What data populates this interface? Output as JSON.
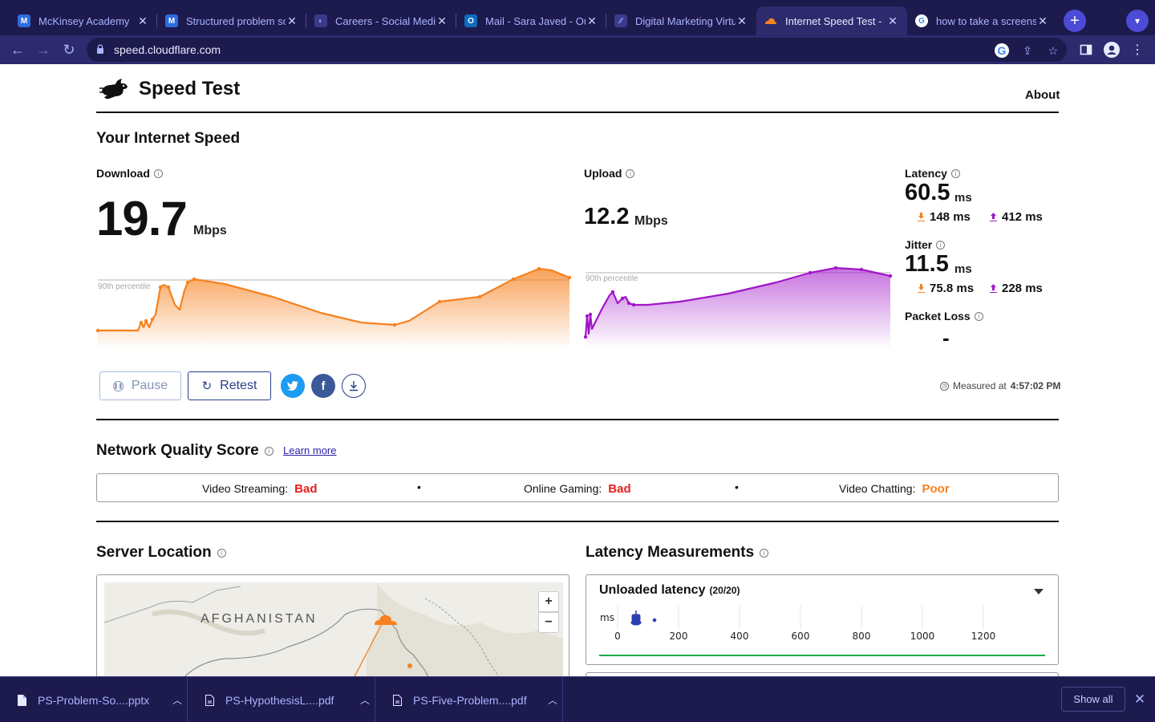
{
  "browser": {
    "tabs": [
      {
        "title": "McKinsey Academy",
        "icon": "mckinsey-icon"
      },
      {
        "title": "Structured problem solving",
        "icon": "mckinsey-icon"
      },
      {
        "title": "Careers - Social Media",
        "icon": "careers-icon"
      },
      {
        "title": "Mail - Sara Javed - Outlook",
        "icon": "outlook-icon"
      },
      {
        "title": "Digital Marketing Virtual",
        "icon": "forage-icon"
      },
      {
        "title": "Internet Speed Test - ",
        "icon": "cloudflare-icon"
      },
      {
        "title": "how to take a screenshot",
        "icon": "google-icon"
      }
    ],
    "url": "speed.cloudflare.com"
  },
  "header": {
    "brand": "Speed Test",
    "about": "About"
  },
  "speed": {
    "section_title": "Your Internet Speed",
    "download": {
      "label": "Download",
      "value": "19.7",
      "unit": "Mbps"
    },
    "upload": {
      "label": "Upload",
      "value": "12.2",
      "unit": "Mbps"
    },
    "percentile_label": "90th percentile",
    "latency": {
      "label": "Latency",
      "value": "60.5",
      "unit": "ms",
      "down": "148 ms",
      "up": "412 ms"
    },
    "jitter": {
      "label": "Jitter",
      "value": "11.5",
      "unit": "ms",
      "down": "75.8 ms",
      "up": "228 ms"
    },
    "packet_loss": {
      "label": "Packet Loss",
      "value": "-"
    },
    "colors": {
      "download": "#f6821f",
      "upload": "#a116c9"
    }
  },
  "actions": {
    "pause": "Pause",
    "retest": "Retest",
    "measured_prefix": "Measured at",
    "measured_time": "4:57:02 PM"
  },
  "nqs": {
    "title": "Network Quality Score",
    "learn_more": "Learn more",
    "items": [
      {
        "label": "Video Streaming:",
        "value": "Bad",
        "color": "#e6201e"
      },
      {
        "label": "Online Gaming:",
        "value": "Bad",
        "color": "#e6201e"
      },
      {
        "label": "Video Chatting:",
        "value": "Poor",
        "color": "#f6821f"
      }
    ]
  },
  "server": {
    "title": "Server Location",
    "map_label": "AFGHANISTAN",
    "zoom_in": "+",
    "zoom_out": "−"
  },
  "latency_measurements": {
    "title": "Latency Measurements",
    "panel_title": "Unloaded latency",
    "panel_count": "(20/20)",
    "axis_unit": "ms",
    "ticks": [
      "0",
      "200",
      "400",
      "600",
      "800",
      "1000",
      "1200"
    ]
  },
  "downloads": {
    "items": [
      "PS-Problem-So....pptx",
      "PS-HypothesisL....pdf",
      "PS-Five-Problem....pdf"
    ],
    "show_all": "Show all"
  }
}
